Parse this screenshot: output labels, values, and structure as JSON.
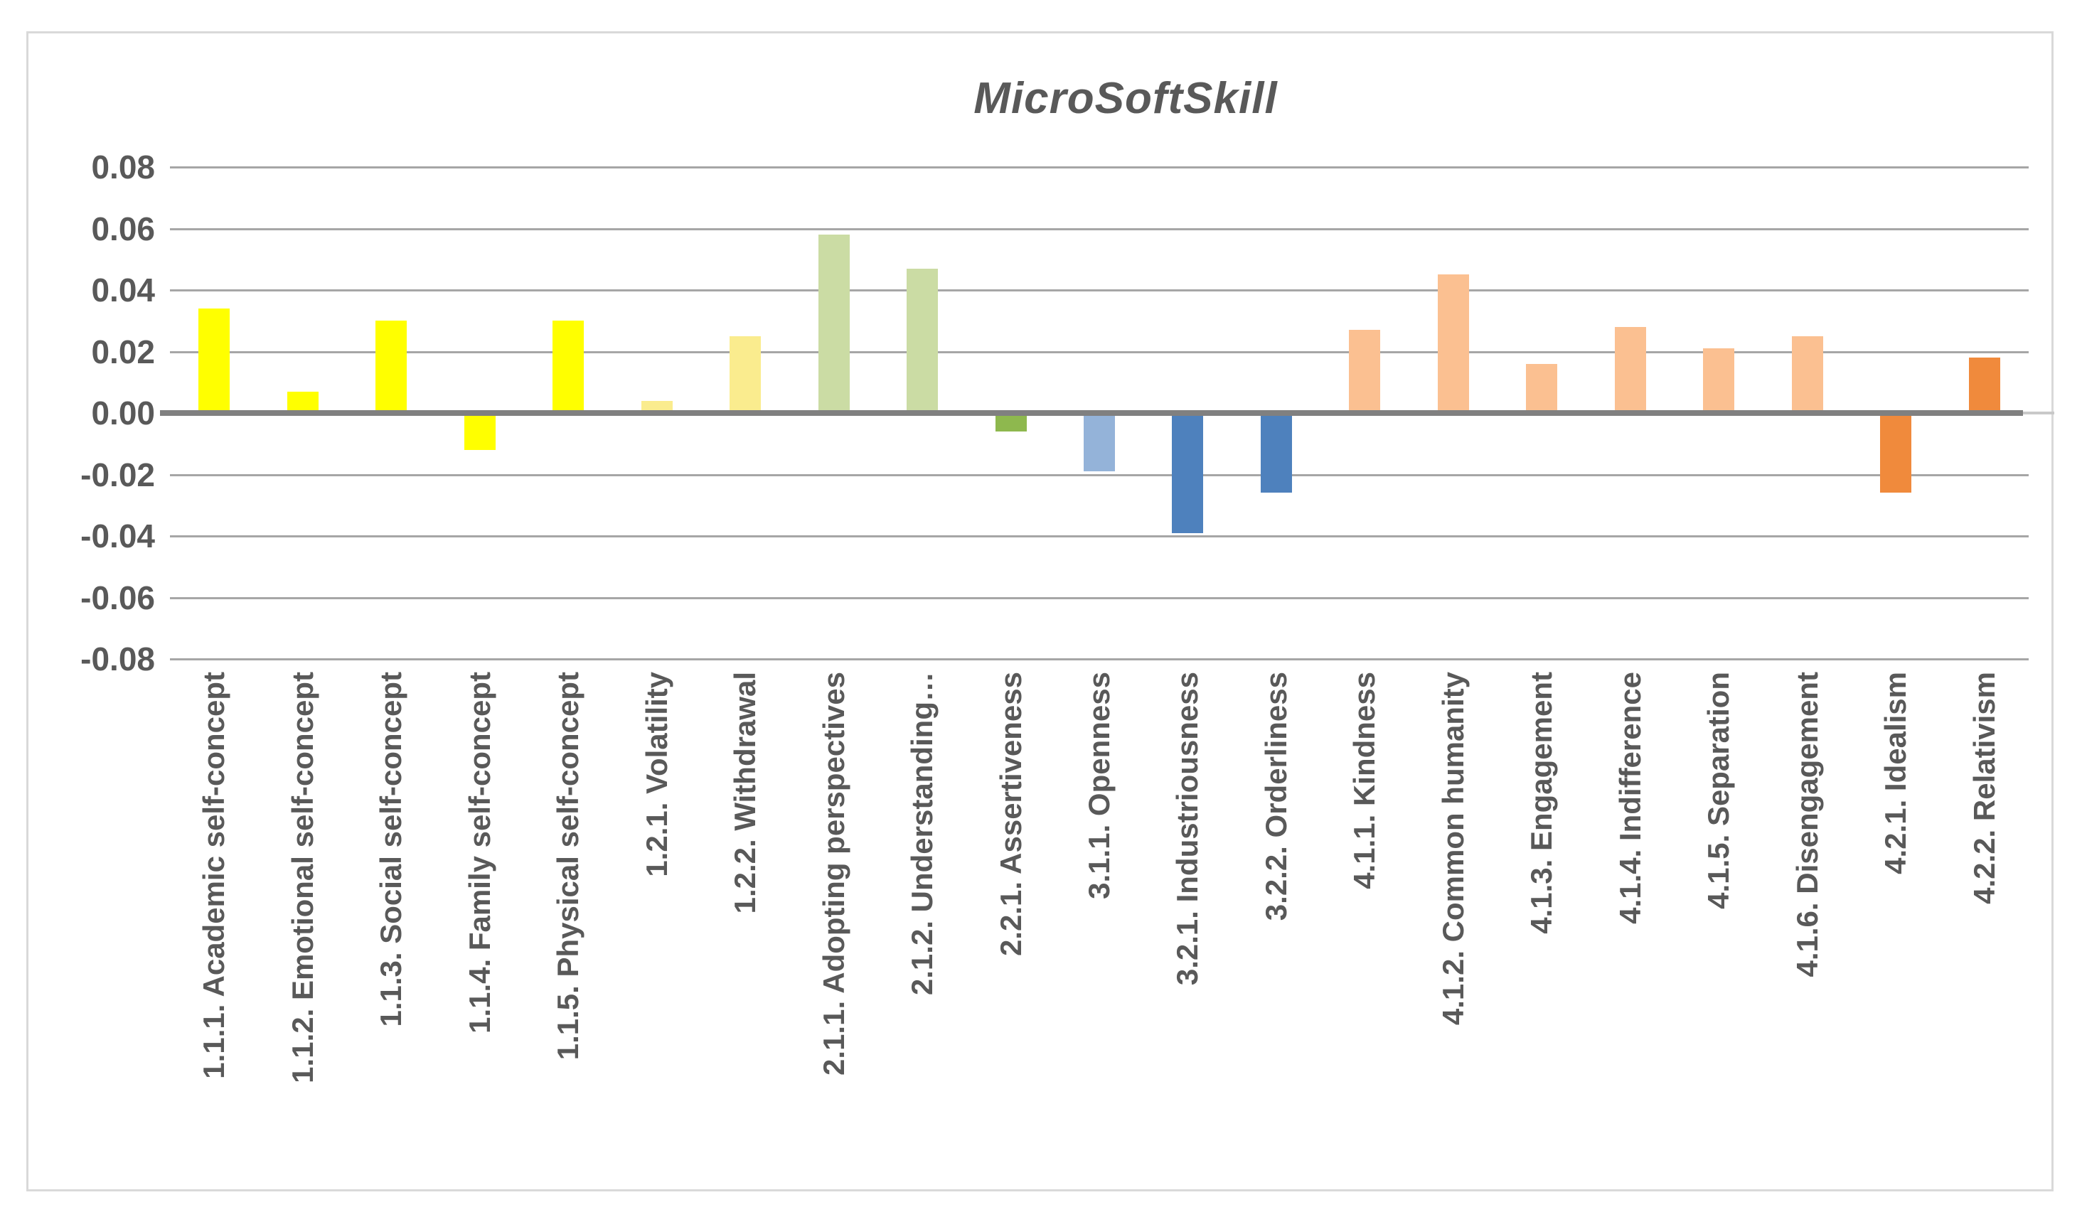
{
  "chart_data": {
    "type": "bar",
    "title": "MicroSoftSkill",
    "categories": [
      "1.1.1. Academic self-concept",
      "1.1.2. Emotional self-concept",
      "1.1.3. Social self-concept",
      "1.1.4. Family self-concept",
      "1.1.5. Physical self-concept",
      "1.2.1. Volatility",
      "1.2.2. Withdrawal",
      "2.1.1. Adopting perspectives",
      "2.1.2. Understanding…",
      "2.2.1. Assertiveness",
      "3.1.1. Openness",
      "3.2.1. Industriousness",
      "3.2.2. Orderliness",
      "4.1.1. Kindness",
      "4.1.2. Common humanity",
      "4.1.3. Engagement",
      "4.1.4. Indifference",
      "4.1.5. Separation",
      "4.1.6. Disengagement",
      "4.2.1. Idealism",
      "4.2.2. Relativism"
    ],
    "values": [
      0.034,
      0.007,
      0.03,
      -0.012,
      0.03,
      0.004,
      0.025,
      0.058,
      0.047,
      -0.006,
      -0.019,
      -0.039,
      -0.026,
      0.027,
      0.045,
      0.016,
      0.028,
      0.021,
      0.025,
      -0.026,
      0.018
    ],
    "bar_colors": [
      "#FFFF00",
      "#FFFF00",
      "#FFFF00",
      "#FFFF00",
      "#FFFF00",
      "#FAEC8E",
      "#FAEC8E",
      "#CBDCA4",
      "#CBDCA4",
      "#8EB84E",
      "#94B3D9",
      "#4E81BD",
      "#4E81BD",
      "#FBC091",
      "#FBC091",
      "#FBC091",
      "#FBC091",
      "#FBC091",
      "#FBC091",
      "#F08A3C",
      "#F08A3C"
    ],
    "xlabel": "",
    "ylabel": "",
    "ylim": [
      -0.08,
      0.08
    ],
    "ytick_step": 0.02,
    "ytick_labels": [
      "0.08",
      "0.06",
      "0.04",
      "0.02",
      "0.00",
      "-0.02",
      "-0.04",
      "-0.06",
      "-0.08"
    ],
    "grid": true,
    "legend_position": "none",
    "colors": {
      "grid_line": "#A6A6A6",
      "zero_axis": "#808080",
      "zero_axis_cap": "#C9C9C9",
      "text": "#595959",
      "frame_border": "#D9D9D9",
      "background": "#FFFFFF"
    }
  }
}
